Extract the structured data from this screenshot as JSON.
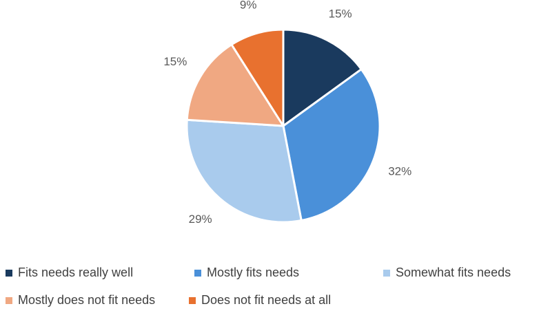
{
  "chart_data": {
    "type": "pie",
    "title": "",
    "categories": [
      "Fits needs really well",
      "Mostly fits needs",
      "Somewhat fits needs",
      "Mostly does not fit needs",
      "Does not fit needs at all"
    ],
    "values": [
      15,
      32,
      29,
      15,
      9
    ],
    "labels": [
      "15%",
      "32%",
      "29%",
      "15%",
      "9%"
    ],
    "colors": [
      "#1a3a5e",
      "#4a90d9",
      "#a9cbed",
      "#f0a882",
      "#e8712f"
    ],
    "legend_position": "bottom"
  }
}
